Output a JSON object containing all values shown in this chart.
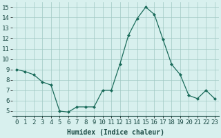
{
  "x": [
    0,
    1,
    2,
    3,
    4,
    5,
    6,
    7,
    8,
    9,
    10,
    11,
    12,
    13,
    14,
    15,
    16,
    17,
    18,
    19,
    20,
    21,
    22,
    23
  ],
  "y": [
    9.0,
    8.8,
    8.5,
    7.8,
    7.5,
    5.0,
    4.9,
    5.4,
    5.4,
    5.4,
    7.0,
    7.0,
    9.5,
    12.3,
    13.9,
    15.0,
    14.3,
    11.9,
    9.5,
    8.5,
    6.5,
    6.2,
    7.0,
    6.2
  ],
  "xlabel": "Humidex (Indice chaleur)",
  "xlim": [
    -0.5,
    23.5
  ],
  "ylim": [
    4.5,
    15.5
  ],
  "yticks": [
    5,
    6,
    7,
    8,
    9,
    10,
    11,
    12,
    13,
    14,
    15
  ],
  "xtick_labels": [
    "0",
    "1",
    "2",
    "3",
    "4",
    "5",
    "6",
    "7",
    "8",
    "9",
    "10",
    "11",
    "12",
    "13",
    "14",
    "15",
    "16",
    "17",
    "18",
    "19",
    "20",
    "21",
    "22",
    "23"
  ],
  "line_color": "#1a6b5a",
  "marker_color": "#1a6b5a",
  "bg_color": "#d8f0ee",
  "grid_color": "#a0c8c4",
  "xlabel_fontsize": 7,
  "tick_fontsize": 6.5
}
